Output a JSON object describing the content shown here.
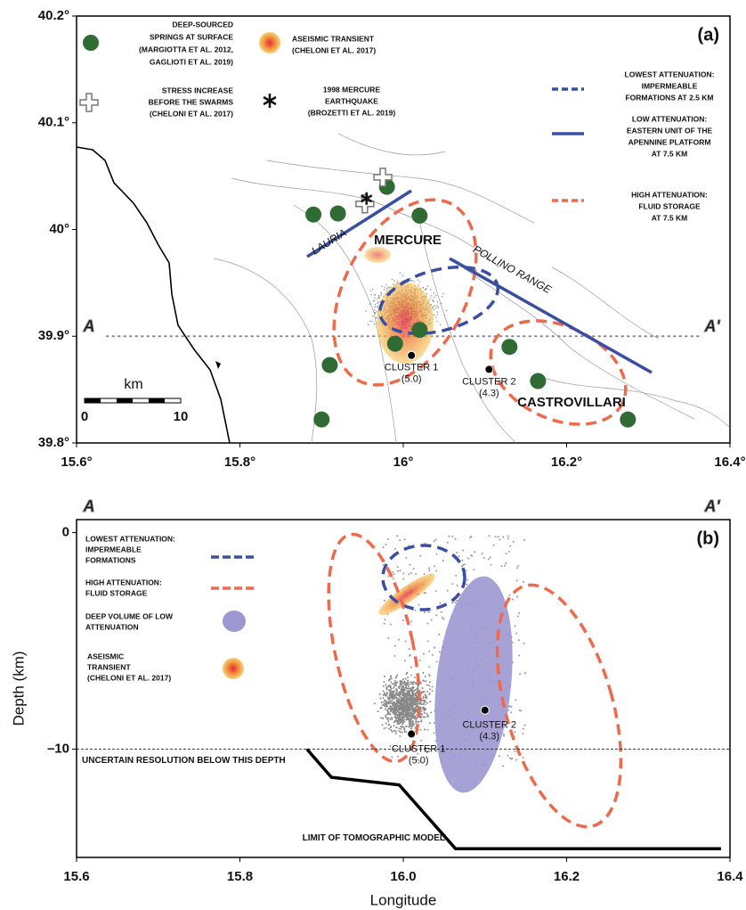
{
  "chart_data": [
    {
      "type": "map",
      "label": "(a)",
      "xlim": [
        15.6,
        16.4
      ],
      "ylim": [
        39.8,
        40.2
      ],
      "xticks": [
        {
          "value": 15.6,
          "label": "15.6°"
        },
        {
          "value": 15.8,
          "label": "15.8°"
        },
        {
          "value": 16,
          "label": "16°"
        },
        {
          "value": 16.2,
          "label": "16.2°"
        },
        {
          "value": 16.4,
          "label": "16.4°"
        }
      ],
      "yticks": [
        {
          "value": 39.8,
          "label": "39.8°"
        },
        {
          "value": 39.9,
          "label": "39.9°"
        },
        {
          "value": 40,
          "label": "40°"
        },
        {
          "value": 40.1,
          "label": "40.1°"
        },
        {
          "value": 40.2,
          "label": "40.2°"
        }
      ],
      "series": [
        {
          "name": [
            "DEEP-SOURCED",
            "SPRINGS AT SURFACE",
            "(MARGIOTTA ET AL. 2012,",
            "GAGLIOTI ET AL. 2019)"
          ],
          "color": "#2f6b33",
          "x": [
            15.89,
            15.92,
            15.98,
            16.02,
            15.99,
            16.02,
            15.91,
            15.9,
            16.13,
            16.165,
            16.275
          ],
          "y": [
            40.014,
            40.015,
            40.04,
            40.013,
            39.893,
            39.906,
            39.873,
            39.822,
            39.89,
            39.858,
            39.822
          ]
        },
        {
          "name": [
            "STRESS INCREASE",
            "BEFORE THE SWARMS",
            "(CHELONI ET AL. 2017)"
          ],
          "color": "#ffffff",
          "x": [
            15.975,
            15.953
          ],
          "y": [
            40.049,
            40.024
          ]
        },
        {
          "name": [
            "1998 MERCURE",
            "EARTHQUAKE",
            "(BROZETTI ET AL. 2019)"
          ],
          "color": "#111111",
          "x": [
            15.955
          ],
          "y": [
            40.029
          ]
        },
        {
          "name": [
            [
              "CLUSTER 1",
              "(5.0)"
            ],
            [
              "CLUSTER 2",
              "(4.3)"
            ]
          ],
          "color": "#000000",
          "x": [
            16.01,
            16.105
          ],
          "y": [
            39.882,
            39.869
          ]
        }
      ],
      "legend": [
        {
          "label": [
            "ASEISMIC TRANSIENT",
            "(CHELONI ET AL. 2017)"
          ]
        },
        {
          "label": [
            "LOWEST ATTENUATION:",
            "IMPERMEABLE",
            "FORMATIONS AT 2.5 KM"
          ],
          "color": "#3a4fa3"
        },
        {
          "label": [
            "LOW ATTENUATION:",
            "EASTERN UNIT OF THE",
            "APENNINE PLATFORM",
            "AT 7.5 KM"
          ],
          "color": "#3a4fa3"
        },
        {
          "label": [
            "HIGH ATTENUATION:",
            "FLUID STORAGE",
            "AT 7.5 KM"
          ],
          "color": "#ee6a4c"
        }
      ],
      "places": [
        "MERCURE",
        "CASTROVILLARI",
        "LAURIA",
        "POLLINO RANGE"
      ],
      "profile": [
        "A",
        "A'"
      ],
      "scale": [
        "km",
        "0",
        "10"
      ]
    },
    {
      "type": "cross-section",
      "label": "(b)",
      "xlabel": "Longitude",
      "ylabel": "Depth (km)",
      "xlim": [
        15.6,
        16.4
      ],
      "ylim": [
        -15,
        0.6
      ],
      "xticks": [
        15.6,
        15.8,
        {
          "value": 16,
          "label": "16.0"
        },
        16.2,
        16.4
      ],
      "yticks": [
        0,
        {
          "value": -10,
          "label": "–10"
        }
      ],
      "profile": [
        "A",
        "A'"
      ],
      "legend": [
        {
          "label": [
            "LOWEST ATTENUATION:",
            "IMPERMEABLE",
            "FORMATIONS"
          ],
          "color": "#3a4fa3"
        },
        {
          "label": [
            "HIGH ATTENUATION:",
            "FLUID STORAGE"
          ],
          "color": "#ee6a4c"
        },
        {
          "label": [
            "DEEP VOLUME OF LOW",
            "ATTENUATION"
          ],
          "color": "#9d98d2"
        },
        {
          "label": [
            "ASEISMIC",
            "TRANSIENT",
            "(CHELONI ET AL. 2017)"
          ]
        }
      ],
      "clusters": {
        "names": [
          [
            "CLUSTER 1",
            "(5.0)"
          ],
          [
            "CLUSTER 2",
            "(4.3)"
          ]
        ],
        "x": [
          16.01,
          16.1
        ],
        "y": [
          -9.3,
          -8.2
        ]
      },
      "resolution": {
        "depth": -10,
        "label": "UNCERTAIN RESOLUTION BELOW THIS DEPTH"
      },
      "model_limit": {
        "name": "LIMIT OF TOMOGRAPHIC MODEL",
        "x": [
          15.882,
          15.912,
          15.995,
          16.064,
          16.389
        ],
        "y": [
          -10,
          -11.3,
          -11.65,
          -14.6,
          -14.6
        ]
      }
    }
  ]
}
